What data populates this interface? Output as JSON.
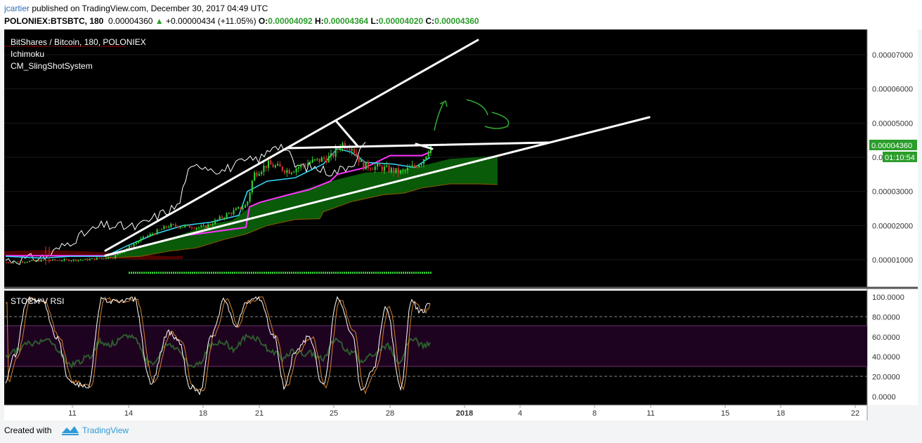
{
  "header": {
    "author": "jcartier",
    "published_text": "published on TradingView.com, December 30, 2017 04:49 UTC",
    "symbol": "POLONIEX:BTSBTC, 180",
    "last": "0.00004360",
    "change": "+0.00000434 (+11.05%)",
    "open_label": "O:",
    "open": "0.00004092",
    "high_label": "H:",
    "high": "0.00004364",
    "low_label": "L:",
    "low": "0.00004020",
    "close_label": "C:",
    "close": "0.00004360"
  },
  "legend": {
    "title": "BitShares / Bitcoin, 180, POLONIEX",
    "indicator1": "Ichimoku",
    "indicator2": "CM_SlingShotSystem"
  },
  "price_badge": "0.00004360",
  "timer_badge": "01:10:54",
  "stoch_label": "STOCH V RSI",
  "footer": {
    "created_with": "Created with",
    "brand": "TradingView"
  },
  "colors": {
    "background": "#000000",
    "candle_up": "#33cc33",
    "candle_down": "#cc3333",
    "kijun": "#ff33ff",
    "tenkan": "#33ddff",
    "lagging": "#ffffff",
    "cloud": "#0a5f0a",
    "cloud_edge": "#8a5a00",
    "rsi_band": "#1e0320",
    "stoch_k": "#ffffff",
    "stoch_d": "#d9822b",
    "rsi_line": "#2d5c2d",
    "trendline": "#ffffff",
    "annotation": "#33aa33",
    "price_badge": "#2a9d2a"
  },
  "chart_data": [
    {
      "type": "candlestick",
      "title": "BitShares / Bitcoin, 180, POLONIEX",
      "x_ticks": [
        "11",
        "14",
        "18",
        "21",
        "25",
        "28",
        "2018",
        "4",
        "8",
        "11",
        "15",
        "18",
        "22"
      ],
      "y_ticks": [
        "0.00007000",
        "0.00006000",
        "0.00005000",
        "0.00004000",
        "0.00003000",
        "0.00002000",
        "0.00001000"
      ],
      "ylim": [
        3.5e-06,
        8e-06
      ],
      "series": [
        {
          "name": "close",
          "dates": [
            "Dec 8",
            "Dec 11",
            "Dec 14",
            "Dec 18",
            "Dec 21",
            "Dec 25",
            "Dec 28",
            "Dec 30"
          ],
          "values": [
            9.5e-06,
            1e-05,
            1.1e-05,
            2.2e-05,
            3.8e-05,
            4.4e-05,
            3.6e-05,
            4.36e-05
          ]
        }
      ]
    },
    {
      "type": "line",
      "title": "STOCH V RSI",
      "y_ticks": [
        "100.0000",
        "80.0000",
        "60.0000",
        "40.0000",
        "20.0000",
        "0.0000"
      ],
      "ylim": [
        0,
        100
      ],
      "bands": {
        "upper": 70,
        "lower": 30,
        "dashed": [
          80,
          20
        ]
      }
    }
  ]
}
